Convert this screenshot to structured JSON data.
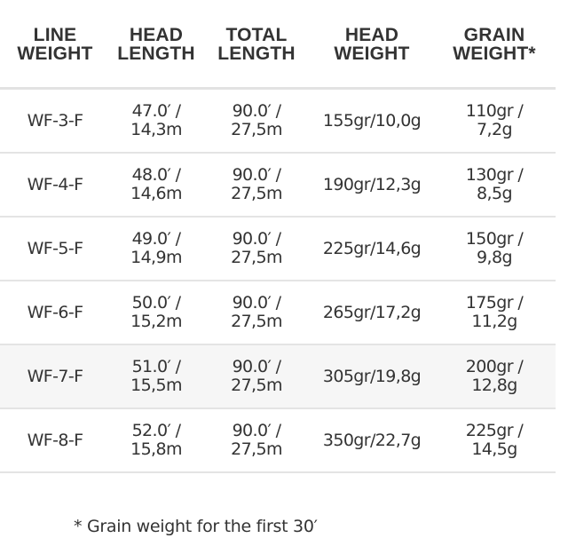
{
  "headers": [
    [
      "LINE",
      "WEIGHT"
    ],
    [
      "HEAD",
      "LENGTH"
    ],
    [
      "TOTAL",
      "LENGTH"
    ],
    [
      "HEAD",
      "WEIGHT"
    ],
    [
      "GRAIN",
      "WEIGHT*"
    ]
  ],
  "rows": [
    {
      "line_weight": "WF-3-F",
      "head_length": [
        "47.0′ /",
        "14,3m"
      ],
      "total_length": [
        "90.0′ /",
        "27,5m"
      ],
      "head_weight": "155gr/10,0g",
      "grain_weight": [
        "110gr /",
        "7,2g"
      ]
    },
    {
      "line_weight": "WF-4-F",
      "head_length": [
        "48.0′ /",
        "14,6m"
      ],
      "total_length": [
        "90.0′ /",
        "27,5m"
      ],
      "head_weight": "190gr/12,3g",
      "grain_weight": [
        "130gr /",
        "8,5g"
      ]
    },
    {
      "line_weight": "WF-5-F",
      "head_length": [
        "49.0′ /",
        "14,9m"
      ],
      "total_length": [
        "90.0′ /",
        "27,5m"
      ],
      "head_weight": "225gr/14,6g",
      "grain_weight": [
        "150gr /",
        "9,8g"
      ]
    },
    {
      "line_weight": "WF-6-F",
      "head_length": [
        "50.0′ /",
        "15,2m"
      ],
      "total_length": [
        "90.0′ /",
        "27,5m"
      ],
      "head_weight": "265gr/17,2g",
      "grain_weight": [
        "175gr /",
        "11,2g"
      ]
    },
    {
      "line_weight": "WF-7-F",
      "head_length": [
        "51.0′ /",
        "15,5m"
      ],
      "total_length": [
        "90.0′ /",
        "27,5m"
      ],
      "head_weight": "305gr/19,8g",
      "grain_weight": [
        "200gr /",
        "12,8g"
      ]
    },
    {
      "line_weight": "WF-8-F",
      "head_length": [
        "52.0′ /",
        "15,8m"
      ],
      "total_length": [
        "90.0′ /",
        "27,5m"
      ],
      "head_weight": "350gr/22,7g",
      "grain_weight": [
        "225gr /",
        "14,5g"
      ]
    }
  ],
  "highlighted_row": 4,
  "footnote": "* Grain weight for the first 30′",
  "colors": {
    "text": "#333333",
    "border": "#e4e4e4",
    "shaded_row": "#f6f6f6"
  }
}
